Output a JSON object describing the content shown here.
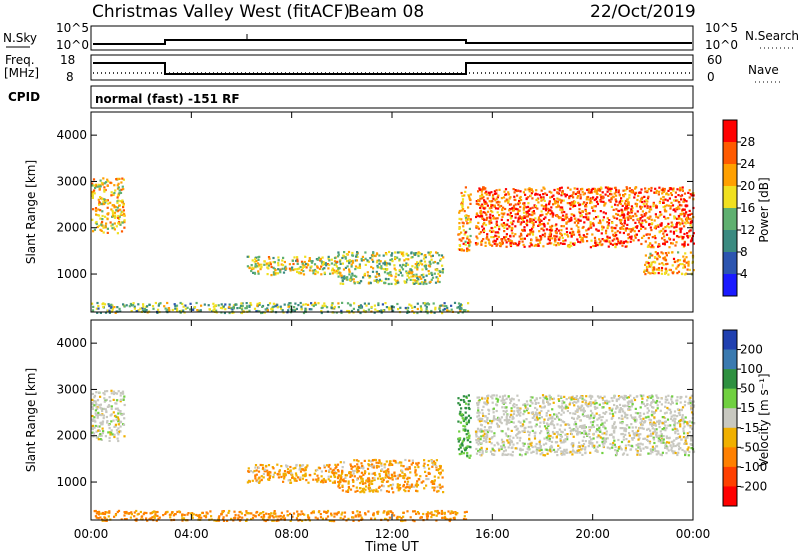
{
  "header": {
    "title": "Christmas Valley West (fitACF)",
    "beam": "Beam 08",
    "date": "22/Oct/2019"
  },
  "top_panels": {
    "nsky_label": "N.Sky",
    "nsky_ticks": [
      "10^5",
      "10^0"
    ],
    "nsearch_label": "N.Search",
    "nsearch_ticks": [
      "10^5",
      "10^0"
    ],
    "freq_label_1": "Freq.",
    "freq_label_2": "[MHz]",
    "freq_ticks": [
      "18",
      "8"
    ],
    "nave_label": "Nave",
    "nave_ticks": [
      "60",
      "0"
    ],
    "cpid_label": "CPID",
    "cpid_value": "normal (fast) -151 RF"
  },
  "colors": {
    "power_scale": [
      "#1a1aff",
      "#2c55b0",
      "#3a8a80",
      "#5fb070",
      "#f0e020",
      "#ffa000",
      "#ff5a00",
      "#ff0000"
    ],
    "velocity_scale": [
      "#2040b0",
      "#3a7ab0",
      "#2e9040",
      "#70d040",
      "#c8c8c0",
      "#f0b000",
      "#ff8000",
      "#ff4000",
      "#ff0000"
    ],
    "ground_scatter": "#c8c8c0"
  },
  "chart_data": [
    {
      "type": "heatmap",
      "panel": "power",
      "ylabel": "Slant Range [km]",
      "ylim": [
        180,
        4500
      ],
      "y_ticks": [
        "4000",
        "3000",
        "2000",
        "1000"
      ],
      "y_tick_values": [
        4000,
        3000,
        2000,
        1000
      ],
      "xlim": [
        0,
        24
      ],
      "x_tick_values": [
        0,
        4,
        8,
        12,
        16,
        20,
        24
      ],
      "colorbar": {
        "label": "Power [dB]",
        "tick_labels": [
          "28",
          "24",
          "20",
          "16",
          "12",
          "8",
          "4"
        ],
        "tick_values": [
          28,
          24,
          20,
          16,
          12,
          8,
          4
        ],
        "range": [
          0,
          32
        ]
      },
      "regions": [
        {
          "t0": 0.0,
          "t1": 1.3,
          "r0": 1900,
          "r1": 3100,
          "power": 20
        },
        {
          "t0": 6.2,
          "t1": 10.0,
          "r0": 1000,
          "r1": 1400,
          "power": 18
        },
        {
          "t0": 9.8,
          "t1": 14.0,
          "r0": 800,
          "r1": 1500,
          "power": 16
        },
        {
          "t0": 14.6,
          "t1": 15.1,
          "r0": 1500,
          "r1": 2900,
          "power": 22
        },
        {
          "t0": 15.3,
          "t1": 24.0,
          "r0": 1600,
          "r1": 2900,
          "power": 26
        },
        {
          "t0": 22.0,
          "t1": 24.0,
          "r0": 1000,
          "r1": 1500,
          "power": 22
        },
        {
          "t0": 0.0,
          "t1": 15.0,
          "r0": 180,
          "r1": 400,
          "power": 14
        }
      ]
    },
    {
      "type": "heatmap",
      "panel": "velocity",
      "ylabel": "Slant Range [km]",
      "ylim": [
        180,
        4500
      ],
      "y_ticks": [
        "4000",
        "3000",
        "2000",
        "1000"
      ],
      "y_tick_values": [
        4000,
        3000,
        2000,
        1000
      ],
      "xlabel": "Time UT",
      "x_ticks": [
        "00:00",
        "04:00",
        "08:00",
        "12:00",
        "16:00",
        "20:00",
        "00:00"
      ],
      "x_tick_values": [
        0,
        4,
        8,
        12,
        16,
        20,
        24
      ],
      "xlim": [
        0,
        24
      ],
      "colorbar": {
        "label": "Velocity [m s⁻¹]",
        "tick_labels": [
          "200",
          "100",
          "50",
          "15",
          "-15",
          "-50",
          "-100",
          "-200"
        ],
        "tick_values": [
          200,
          100,
          50,
          15,
          -15,
          -50,
          -100,
          -200
        ]
      },
      "regions": [
        {
          "t0": 0.0,
          "t1": 1.3,
          "r0": 1900,
          "r1": 3000,
          "velocity": 0
        },
        {
          "t0": 6.2,
          "t1": 10.0,
          "r0": 1000,
          "r1": 1400,
          "velocity": -30
        },
        {
          "t0": 9.8,
          "t1": 14.0,
          "r0": 800,
          "r1": 1500,
          "velocity": -30
        },
        {
          "t0": 14.6,
          "t1": 15.1,
          "r0": 1500,
          "r1": 2900,
          "velocity": 40
        },
        {
          "t0": 15.3,
          "t1": 24.0,
          "r0": 1600,
          "r1": 2900,
          "velocity": 0
        },
        {
          "t0": 0.0,
          "t1": 15.0,
          "r0": 180,
          "r1": 400,
          "velocity": -40
        }
      ]
    }
  ]
}
